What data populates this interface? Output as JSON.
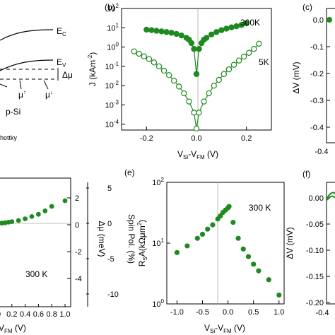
{
  "chart_data": [
    {
      "panel": "(b)",
      "type": "scatter",
      "ylog": true,
      "xlim": [
        -0.3,
        0.3
      ],
      "ylim": [
        5e-05,
        100
      ],
      "xticks": [
        "-0.2",
        "0.0",
        "0.2"
      ],
      "yticks": [
        "10⁴",
        "10³",
        "10²",
        "10¹",
        "10⁰",
        "10¹",
        "10²"
      ],
      "ylabel": "J (kAm⁻²)",
      "xlabel": "V_Si-V_FM (V)",
      "series": [
        {
          "name": "300K",
          "marker": "filled",
          "x": [
            -0.2,
            -0.18,
            -0.16,
            -0.14,
            -0.12,
            -0.1,
            -0.08,
            -0.06,
            -0.04,
            -0.03,
            -0.02,
            -0.01,
            0.0,
            0.01,
            0.02,
            0.03,
            0.04,
            0.06,
            0.08,
            0.1,
            0.12,
            0.14,
            0.16,
            0.18,
            0.2
          ],
          "y": [
            8,
            7.5,
            7,
            6.5,
            6,
            5.5,
            4.8,
            4,
            3,
            2.4,
            1.6,
            0.8,
            0.04,
            0.8,
            1.6,
            2.4,
            3,
            4.5,
            6,
            7.5,
            9,
            10.5,
            12,
            14,
            17
          ]
        },
        {
          "name": "5K",
          "marker": "open",
          "x": [
            -0.25,
            -0.23,
            -0.21,
            -0.19,
            -0.17,
            -0.15,
            -0.13,
            -0.11,
            -0.09,
            -0.07,
            -0.05,
            -0.03,
            -0.01,
            0.0,
            0.01,
            0.03,
            0.05,
            0.07,
            0.09,
            0.11,
            0.13,
            0.15,
            0.17,
            0.19,
            0.21,
            0.23,
            0.25
          ],
          "y": [
            0.6,
            0.45,
            0.33,
            0.24,
            0.16,
            0.1,
            0.06,
            0.035,
            0.018,
            0.009,
            0.004,
            0.0015,
            0.0004,
            6e-05,
            0.0004,
            0.0015,
            0.004,
            0.01,
            0.02,
            0.04,
            0.07,
            0.12,
            0.2,
            0.32,
            0.5,
            0.8,
            1.5
          ]
        }
      ],
      "annotations": [
        "300K",
        "5K"
      ]
    },
    {
      "panel": "(e)",
      "type": "scatter",
      "ylog": true,
      "xlim": [
        -1.2,
        1.1
      ],
      "ylim": [
        1,
        100
      ],
      "xticks": [
        "-1.0",
        "-0.5",
        "0.0",
        "0.5",
        "1.0"
      ],
      "yticks": [
        "10⁰",
        "10¹",
        "10²"
      ],
      "ylabel": "R_S A (kΩμm²)",
      "xlabel": "V_Si-V_FM (V)",
      "series": [
        {
          "name": "300 K",
          "marker": "filled",
          "x": [
            -1.0,
            -0.8,
            -0.6,
            -0.5,
            -0.4,
            -0.3,
            -0.2,
            -0.15,
            -0.1,
            -0.05,
            0.0,
            0.02,
            0.1,
            0.2,
            0.3,
            0.4,
            0.5,
            0.6,
            0.8,
            1.0
          ],
          "y": [
            7,
            9,
            12,
            14,
            17,
            20,
            25,
            28,
            32,
            35,
            38,
            40,
            22,
            12,
            8,
            6,
            4.5,
            3.5,
            2.5,
            1.4
          ]
        }
      ],
      "annotations": [
        "300 K"
      ]
    }
  ],
  "panels": {
    "b": "(b)",
    "c": "(c)",
    "e": "(e)",
    "f": "(f)"
  },
  "left_top": {
    "ec": "E",
    "ec_sub": "C",
    "ev": "E",
    "ev_sub": "V",
    "dmu": "Δμ",
    "mu_up": "μ",
    "mu_up_sup": "↑",
    "mu_down": "μ",
    "mu_down_sup": "↓",
    "psi": "p-Si",
    "schottky": "hottky"
  },
  "panel_c": {
    "yticks": [
      "0.0",
      "-0.1",
      "-0.2",
      "-0.3",
      "-0.4"
    ],
    "ylabel": "ΔV (mV)",
    "xtick": "-0.4"
  },
  "panel_f": {
    "yticks": [
      "0.00",
      "-0.05",
      "-0.10",
      "-0.15",
      "-0.20"
    ],
    "ylabel": "ΔV (mV)",
    "xtick": "-0.4"
  },
  "panel_d": {
    "right_yticks": [
      "2",
      "0",
      "-2",
      "-4"
    ],
    "right_yticks2": [
      "5",
      "0",
      "-5",
      "-10"
    ],
    "ylabel1": "Δμ (meV)",
    "ylabel2": "Spin Pol. (%)",
    "xticks": [
      "0",
      "0.2",
      "0.4",
      "0.6",
      "0.8",
      "1.0"
    ],
    "temp": "300 K",
    "xlabel": "V_FM (V)",
    "dots_x": [
      0.0,
      0.05,
      0.1,
      0.15,
      0.2,
      0.3,
      0.4,
      0.5,
      0.6,
      0.7,
      0.8,
      1.0
    ],
    "dots_y": [
      0.0,
      0.02,
      0.05,
      0.1,
      0.15,
      0.25,
      0.4,
      0.6,
      0.8,
      1.1,
      1.5,
      2.0
    ]
  }
}
